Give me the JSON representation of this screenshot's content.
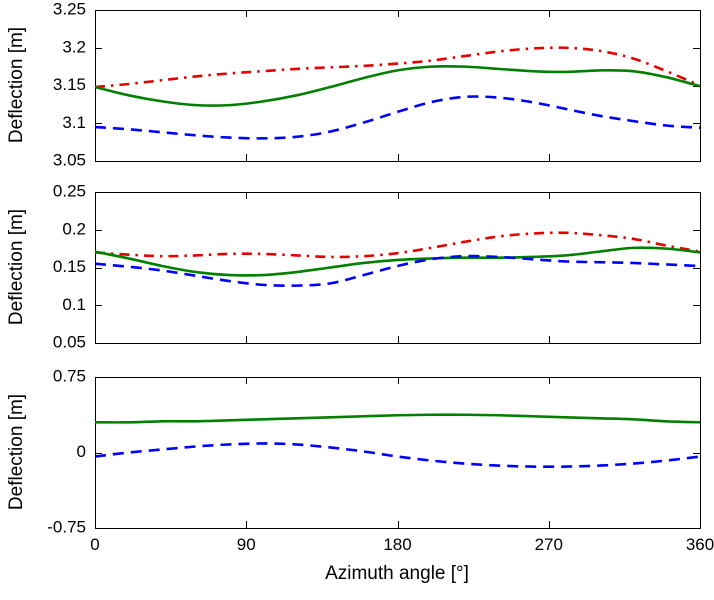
{
  "figure": {
    "xlabel": "Azimuth angle [°]",
    "background": "#ffffff",
    "axis_color": "#000000"
  },
  "chart_data": [
    {
      "type": "line",
      "title": "",
      "xlabel": "",
      "ylabel": "Deflection [m]",
      "xlim": [
        0,
        360
      ],
      "ylim": [
        3.05,
        3.25
      ],
      "xticks": [
        0,
        90,
        180,
        270,
        360
      ],
      "xticklabels": [
        "0",
        "90",
        "180",
        "270",
        "360"
      ],
      "show_xticklabels": false,
      "yticks": [
        3.05,
        3.1,
        3.15,
        3.2,
        3.25
      ],
      "yticklabels": [
        "3.05",
        "3.1",
        "3.15",
        "3.2",
        "3.25"
      ],
      "grid": false,
      "legend": "none",
      "x": [
        0,
        20,
        40,
        60,
        80,
        100,
        120,
        140,
        160,
        180,
        200,
        220,
        240,
        260,
        280,
        300,
        320,
        340,
        360
      ],
      "series": [
        {
          "name": "red-dash-dot",
          "color": "#e60000",
          "style": "dashdot",
          "values": [
            3.148,
            3.152,
            3.157,
            3.162,
            3.166,
            3.169,
            3.172,
            3.174,
            3.176,
            3.179,
            3.183,
            3.189,
            3.195,
            3.199,
            3.2,
            3.196,
            3.186,
            3.169,
            3.15
          ]
        },
        {
          "name": "green-solid",
          "color": "#008000",
          "style": "solid",
          "values": [
            3.148,
            3.137,
            3.129,
            3.124,
            3.124,
            3.129,
            3.137,
            3.148,
            3.16,
            3.17,
            3.175,
            3.175,
            3.172,
            3.169,
            3.168,
            3.17,
            3.169,
            3.161,
            3.149
          ]
        },
        {
          "name": "blue-dashed",
          "color": "#0000ff",
          "style": "dashed",
          "values": [
            3.095,
            3.092,
            3.088,
            3.084,
            3.081,
            3.08,
            3.082,
            3.089,
            3.101,
            3.115,
            3.128,
            3.135,
            3.134,
            3.128,
            3.119,
            3.11,
            3.103,
            3.097,
            3.094
          ]
        }
      ]
    },
    {
      "type": "line",
      "title": "",
      "xlabel": "",
      "ylabel": "Deflection [m]",
      "xlim": [
        0,
        360
      ],
      "ylim": [
        0.05,
        0.25
      ],
      "xticks": [
        0,
        90,
        180,
        270,
        360
      ],
      "xticklabels": [
        "0",
        "90",
        "180",
        "270",
        "360"
      ],
      "show_xticklabels": false,
      "yticks": [
        0.05,
        0.1,
        0.15,
        0.2,
        0.25
      ],
      "yticklabels": [
        "0.05",
        "0.1",
        "0.15",
        "0.2",
        "0.25"
      ],
      "grid": false,
      "legend": "none",
      "x": [
        0,
        20,
        40,
        60,
        80,
        100,
        120,
        140,
        160,
        180,
        200,
        220,
        240,
        260,
        280,
        300,
        320,
        340,
        360
      ],
      "series": [
        {
          "name": "red-dash-dot",
          "color": "#e60000",
          "style": "dashdot",
          "values": [
            0.17,
            0.167,
            0.165,
            0.166,
            0.168,
            0.168,
            0.166,
            0.164,
            0.165,
            0.169,
            0.176,
            0.184,
            0.191,
            0.195,
            0.196,
            0.193,
            0.188,
            0.179,
            0.171
          ]
        },
        {
          "name": "green-solid",
          "color": "#008000",
          "style": "solid",
          "values": [
            0.171,
            0.162,
            0.152,
            0.144,
            0.14,
            0.14,
            0.144,
            0.15,
            0.156,
            0.16,
            0.162,
            0.163,
            0.163,
            0.164,
            0.166,
            0.171,
            0.176,
            0.175,
            0.17
          ]
        },
        {
          "name": "blue-dashed",
          "color": "#0000ff",
          "style": "dashed",
          "values": [
            0.155,
            0.151,
            0.146,
            0.139,
            0.132,
            0.127,
            0.126,
            0.129,
            0.14,
            0.152,
            0.161,
            0.165,
            0.164,
            0.161,
            0.158,
            0.157,
            0.156,
            0.154,
            0.152
          ]
        }
      ]
    },
    {
      "type": "line",
      "title": "",
      "xlabel": "Azimuth angle [°]",
      "ylabel": "Deflection [m]",
      "xlim": [
        0,
        360
      ],
      "ylim": [
        -0.75,
        0.75
      ],
      "xticks": [
        0,
        90,
        180,
        270,
        360
      ],
      "xticklabels": [
        "0",
        "90",
        "180",
        "270",
        "360"
      ],
      "show_xticklabels": true,
      "yticks": [
        -0.75,
        0,
        0.75
      ],
      "yticklabels": [
        "-0.75",
        "0",
        "0.75"
      ],
      "grid": false,
      "legend": "none",
      "x": [
        0,
        20,
        40,
        60,
        80,
        100,
        120,
        140,
        160,
        180,
        200,
        220,
        240,
        260,
        280,
        300,
        320,
        340,
        360
      ],
      "series": [
        {
          "name": "green-solid",
          "color": "#008000",
          "style": "solid",
          "values": [
            0.3,
            0.3,
            0.31,
            0.31,
            0.32,
            0.33,
            0.34,
            0.35,
            0.36,
            0.37,
            0.375,
            0.375,
            0.37,
            0.36,
            0.35,
            0.34,
            0.33,
            0.31,
            0.3
          ]
        },
        {
          "name": "blue-dashed",
          "color": "#0000ff",
          "style": "dashed",
          "values": [
            -0.04,
            0.0,
            0.03,
            0.06,
            0.08,
            0.09,
            0.08,
            0.05,
            0.01,
            -0.04,
            -0.08,
            -0.11,
            -0.13,
            -0.14,
            -0.14,
            -0.13,
            -0.11,
            -0.08,
            -0.04
          ]
        }
      ]
    }
  ]
}
